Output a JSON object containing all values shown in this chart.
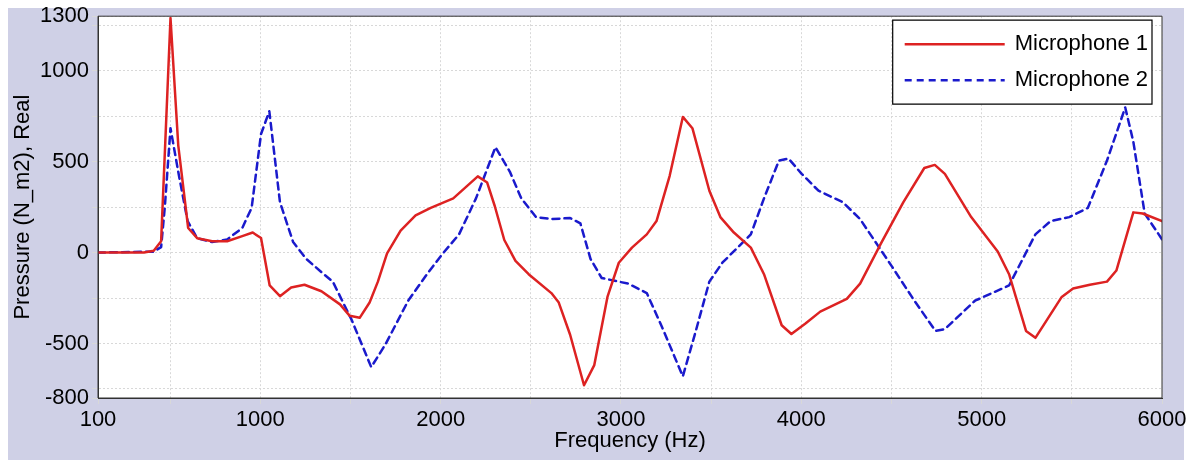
{
  "chart_data": {
    "type": "line",
    "xlabel": "Frequency (Hz)",
    "ylabel": "Pressure (N_m2), Real",
    "xlim": [
      100,
      6000
    ],
    "ylim": [
      -800,
      1300
    ],
    "xticks": [
      100,
      {
        "value": 500,
        "label": null
      },
      1000,
      {
        "value": 1500,
        "label": null
      },
      2000,
      {
        "value": 2500,
        "label": null
      },
      3000,
      {
        "value": 3500,
        "label": null
      },
      4000,
      {
        "value": 4500,
        "label": null
      },
      5000,
      {
        "value": 5500,
        "label": null
      },
      6000
    ],
    "yticks": [
      -800,
      {
        "value": -750,
        "label": null
      },
      -500,
      {
        "value": -250,
        "label": null
      },
      0,
      {
        "value": 250,
        "label": null
      },
      500,
      {
        "value": 750,
        "label": null
      },
      1000,
      {
        "value": 1250,
        "label": null
      },
      1300
    ],
    "grid": true,
    "legend": "top right",
    "marker": "none",
    "series": [
      {
        "name": "Microphone 1",
        "color": "#dd2222",
        "line_style": "solid",
        "x": [
          100,
          355,
          409,
          450,
          502,
          545,
          600,
          650,
          733,
          816,
          900,
          958,
          1004,
          1052,
          1109,
          1171,
          1245,
          1339,
          1442,
          1496,
          1551,
          1606,
          1652,
          1703,
          1778,
          1861,
          1945,
          2070,
          2206,
          2258,
          2300,
          2353,
          2415,
          2488,
          2614,
          2655,
          2718,
          2795,
          2852,
          2925,
          2988,
          3061,
          3143,
          3197,
          3270,
          3343,
          3396,
          3490,
          3551,
          3626,
          3720,
          3793,
          3891,
          3945,
          4023,
          4105,
          4252,
          4326,
          4441,
          4566,
          4682,
          4740,
          4796,
          4942,
          5089,
          5152,
          5246,
          5298,
          5444,
          5507,
          5600,
          5695,
          5747,
          5841,
          5893,
          6000
        ],
        "values": [
          0,
          0,
          10,
          62,
          1290,
          590,
          135,
          79,
          62,
          62,
          90,
          110,
          80,
          -181,
          -240,
          -192,
          -177,
          -213,
          -285,
          -348,
          -359,
          -275,
          -160,
          -4,
          121,
          204,
          246,
          298,
          419,
          385,
          256,
          69,
          -46,
          -119,
          -223,
          -275,
          -452,
          -730,
          -619,
          -244,
          -56,
          27,
          100,
          173,
          422,
          746,
          684,
          340,
          195,
          110,
          27,
          -119,
          -400,
          -448,
          -390,
          -325,
          -255,
          -171,
          49,
          277,
          465,
          482,
          433,
          195,
          6,
          -119,
          -431,
          -469,
          -244,
          -198,
          -177,
          -160,
          -99,
          221,
          215,
          173
        ]
      },
      {
        "name": "Microphone 2",
        "color": "#1a1acc",
        "line_style": "dashed",
        "x": [
          100,
          409,
          450,
          471,
          502,
          545,
          597,
          650,
          733,
          816,
          900,
          952,
          1004,
          1050,
          1109,
          1182,
          1255,
          1339,
          1402,
          1506,
          1615,
          1694,
          1820,
          1924,
          2008,
          2102,
          2196,
          2304,
          2384,
          2447,
          2529,
          2614,
          2718,
          2775,
          2831,
          2893,
          3040,
          3143,
          3228,
          3343,
          3415,
          3490,
          3562,
          3720,
          3793,
          3876,
          3929,
          4002,
          4095,
          4230,
          4326,
          4502,
          4627,
          4744,
          4796,
          4963,
          5152,
          5298,
          5382,
          5486,
          5589,
          5695,
          5796,
          5841,
          5904,
          6000
        ],
        "values": [
          0,
          5,
          30,
          256,
          684,
          444,
          173,
          79,
          58,
          72,
          135,
          246,
          652,
          777,
          277,
          58,
          -35,
          -108,
          -160,
          -369,
          -630,
          -505,
          -265,
          -119,
          -10,
          100,
          298,
          580,
          444,
          298,
          195,
          184,
          190,
          160,
          -35,
          -140,
          -171,
          -223,
          -411,
          -681,
          -431,
          -160,
          -56,
          100,
          298,
          506,
          517,
          433,
          340,
          277,
          184,
          -76,
          -265,
          -431,
          -421,
          -265,
          -181,
          100,
          173,
          195,
          246,
          506,
          798,
          610,
          215,
          73
        ]
      }
    ]
  }
}
